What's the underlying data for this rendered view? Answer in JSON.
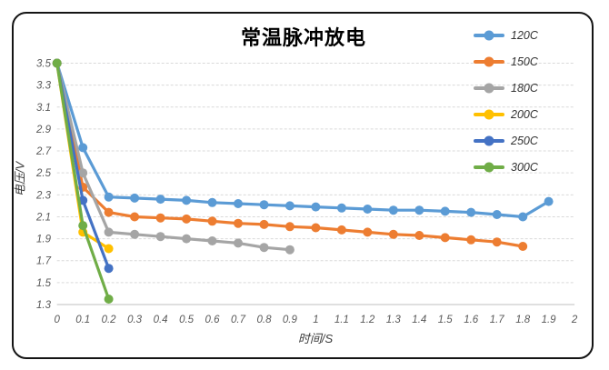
{
  "chart_data": {
    "type": "line",
    "title": "常温脉冲放电",
    "xlabel": "时间/S",
    "ylabel": "电压/V",
    "xlim": [
      0,
      2
    ],
    "ylim": [
      1.3,
      3.5
    ],
    "x_ticks": [
      0,
      0.1,
      0.2,
      0.3,
      0.4,
      0.5,
      0.6,
      0.7,
      0.8,
      0.9,
      1,
      1.1,
      1.2,
      1.3,
      1.4,
      1.5,
      1.6,
      1.7,
      1.8,
      1.9,
      2
    ],
    "y_ticks": [
      1.3,
      1.5,
      1.7,
      1.9,
      2.1,
      2.3,
      2.5,
      2.7,
      2.9,
      3.1,
      3.3,
      3.5
    ],
    "grid": "horizontal-dashed",
    "axis_line_color": "#bfbfbf",
    "gridline_color": "#d9d9d9",
    "legend_position": "top-right-overlay",
    "marker": "circle",
    "series": [
      {
        "name": "120C",
        "color": "#5B9BD5",
        "x": [
          0,
          0.1,
          0.2,
          0.3,
          0.4,
          0.5,
          0.6,
          0.7,
          0.8,
          0.9,
          1,
          1.1,
          1.2,
          1.3,
          1.4,
          1.5,
          1.6,
          1.7,
          1.8,
          1.9
        ],
        "values": [
          3.5,
          2.73,
          2.28,
          2.27,
          2.26,
          2.25,
          2.23,
          2.22,
          2.21,
          2.2,
          2.19,
          2.18,
          2.17,
          2.16,
          2.16,
          2.15,
          2.14,
          2.12,
          2.1,
          2.24
        ]
      },
      {
        "name": "150C",
        "color": "#ED7D31",
        "x": [
          0,
          0.1,
          0.2,
          0.3,
          0.4,
          0.5,
          0.6,
          0.7,
          0.8,
          0.9,
          1,
          1.1,
          1.2,
          1.3,
          1.4,
          1.5,
          1.6,
          1.7,
          1.8
        ],
        "values": [
          3.5,
          2.37,
          2.14,
          2.1,
          2.09,
          2.08,
          2.06,
          2.04,
          2.03,
          2.01,
          2,
          1.98,
          1.96,
          1.94,
          1.93,
          1.91,
          1.89,
          1.87,
          1.83
        ]
      },
      {
        "name": "180C",
        "color": "#A5A5A5",
        "x": [
          0,
          0.1,
          0.2,
          0.3,
          0.4,
          0.5,
          0.6,
          0.7,
          0.8,
          0.9
        ],
        "values": [
          3.5,
          2.5,
          1.96,
          1.94,
          1.92,
          1.9,
          1.88,
          1.86,
          1.82,
          1.8
        ]
      },
      {
        "name": "200C",
        "color": "#FFC000",
        "x": [
          0,
          0.1,
          0.2
        ],
        "values": [
          3.5,
          1.96,
          1.81
        ]
      },
      {
        "name": "250C",
        "color": "#4472C4",
        "x": [
          0,
          0.1,
          0.2
        ],
        "values": [
          3.5,
          2.25,
          1.63
        ]
      },
      {
        "name": "300C",
        "color": "#70AD47",
        "x": [
          0,
          0.1,
          0.2
        ],
        "values": [
          3.5,
          2.02,
          1.35
        ]
      }
    ]
  }
}
